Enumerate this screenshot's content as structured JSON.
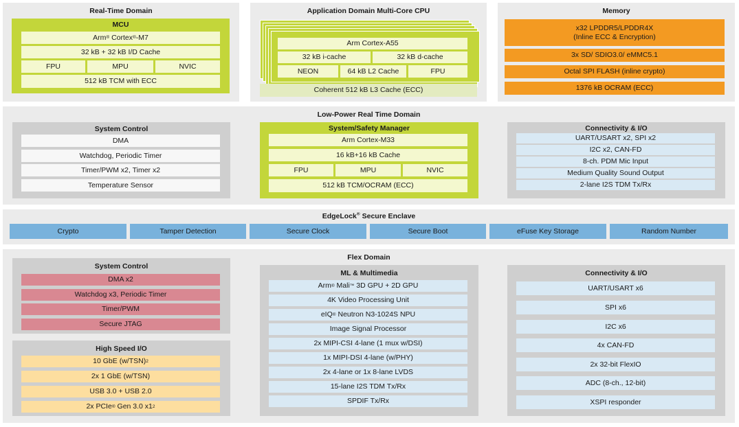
{
  "rt": {
    "title": "Real-Time Domain",
    "mcu": {
      "title": "MCU",
      "core_pre": "Arm",
      "core_mark": "®",
      "core_mid": " Cortex",
      "core_mark2": "®",
      "core_post": "-M7",
      "cache": "32 kB + 32 kB I/D Cache",
      "fpu": "FPU",
      "mpu": "MPU",
      "nvic": "NVIC",
      "tcm": "512 kB TCM with ECC"
    }
  },
  "app": {
    "title": "Application Domain Multi-Core CPU",
    "core": "Arm Cortex-A55",
    "icache": "32 kB i-cache",
    "dcache": "32 kB d-cache",
    "neon": "NEON",
    "l2": "64 kB L2 Cache",
    "fpu": "FPU",
    "l3": "Coherent 512 kB L3 Cache (ECC)"
  },
  "memory": {
    "title": "Memory",
    "items": [
      "x32 LPDDR5/LPDDR4X\n(Inline ECC & Encryption)",
      "3x SD/ SDIO3.0/ eMMC5.1",
      "Octal SPI FLASH (inline crypto)",
      "1376 kB OCRAM (ECC)"
    ]
  },
  "lp": {
    "title": "Low-Power Real Time Domain",
    "sysctl": {
      "title": "System Control",
      "items": [
        "DMA",
        "Watchdog, Periodic Timer",
        "Timer/PWM x2, Timer x2",
        "Temperature Sensor"
      ]
    },
    "ssm": {
      "title": "System/Safety Manager",
      "core": "Arm Cortex-M33",
      "cache": "16 kB+16 kB Cache",
      "fpu": "FPU",
      "mpu": "MPU",
      "nvic": "NVIC",
      "tcm": "512 kB TCM/OCRAM (ECC)"
    },
    "conn": {
      "title": "Connectivity & I/O",
      "items": [
        "UART/USART x2, SPI x2",
        "I2C x2, CAN-FD",
        "8-ch. PDM Mic Input",
        "Medium Quality Sound Output",
        "2-lane I2S TDM Tx/Rx"
      ]
    }
  },
  "se": {
    "title_pre": "EdgeLock",
    "title_mark": "®",
    "title_post": " Secure Enclave",
    "items": [
      "Crypto",
      "Tamper Detection",
      "Secure Clock",
      "Secure Boot",
      "eFuse Key Storage",
      "Random Number"
    ]
  },
  "flex": {
    "title": "Flex Domain",
    "sysctl": {
      "title": "System Control",
      "items": [
        "DMA x2",
        "Watchdog x3, Periodic Timer",
        "Timer/PWM",
        "Secure JTAG"
      ]
    },
    "hsio": {
      "title": "High Speed I/O",
      "i0_pre": "10 GbE (w/TSN)",
      "i0_sup": "2",
      "i1": "2x 1 GbE (w/TSN)",
      "i2": "USB 3.0 + USB 2.0",
      "i3_pre": "2x PCIe",
      "i3_mark": "®",
      "i3_mid": " Gen 3.0 x1",
      "i3_sup": "2"
    },
    "ml": {
      "title": "ML & Multimedia",
      "gpu_pre": "Arm",
      "gpu_mark": "®",
      "gpu_mid": " Mali",
      "gpu_tm": "™",
      "gpu_post": " 3D GPU + 2D GPU",
      "items": [
        "4K Video Processing Unit"
      ],
      "npu_pre": "eIQ",
      "npu_mark": "®",
      "npu_post": " Neutron N3-1024S NPU",
      "rest": [
        "Image Signal Processor",
        "2x MIPI-CSI 4-lane (1 mux w/DSI)",
        "1x MIPI-DSI 4-lane (w/PHY)",
        "2x 4-lane or 1x 8-lane LVDS",
        "15-lane I2S TDM Tx/Rx",
        "SPDIF Tx/Rx"
      ]
    },
    "conn": {
      "title": "Connectivity & I/O",
      "items": [
        "UART/USART x6",
        "SPI x6",
        "I2C x6",
        "4x CAN-FD",
        "2x 32-bit FlexIO",
        "ADC (8-ch., 12-bit)",
        "XSPI responder"
      ]
    }
  },
  "colors": {
    "panel": "#ebebeb",
    "grey_box": "#cfcfcf",
    "green_box": "#c3d63a",
    "green_cell": "#f4f8cf",
    "blue_cell": "#d9e9f4",
    "secure_blue": "#79b2dc",
    "red_cell": "#d98892",
    "yellow_cell": "#fdde9f",
    "orange_cell": "#f39a22"
  }
}
